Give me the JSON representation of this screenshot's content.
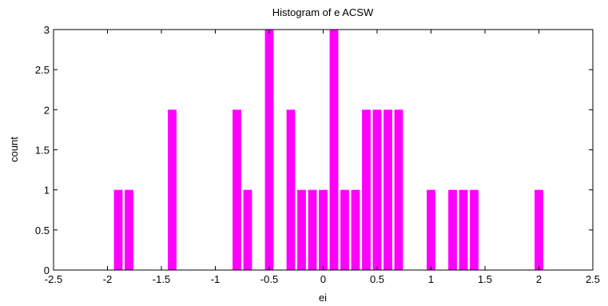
{
  "chart_data": {
    "type": "bar",
    "title": "Histogram of e ACSW",
    "xlabel": "ei",
    "ylabel": "count",
    "xlim": [
      -2.5,
      2.5
    ],
    "ylim": [
      0,
      3
    ],
    "x_ticks": [
      "-2.5",
      "-2",
      "-1.5",
      "-1",
      "-0.5",
      "0",
      "0.5",
      "1",
      "1.5",
      "2",
      "2.5"
    ],
    "y_ticks": [
      "0",
      "0.5",
      "1",
      "1.5",
      "2",
      "2.5",
      "3"
    ],
    "bar_width": 0.08,
    "bar_color": "#ff00ff",
    "grid": false,
    "bars": [
      {
        "x": -1.9,
        "count": 1
      },
      {
        "x": -1.8,
        "count": 1
      },
      {
        "x": -1.4,
        "count": 2
      },
      {
        "x": -0.8,
        "count": 2
      },
      {
        "x": -0.7,
        "count": 1
      },
      {
        "x": -0.5,
        "count": 3
      },
      {
        "x": -0.3,
        "count": 2
      },
      {
        "x": -0.2,
        "count": 1
      },
      {
        "x": -0.1,
        "count": 1
      },
      {
        "x": 0.0,
        "count": 1
      },
      {
        "x": 0.1,
        "count": 3
      },
      {
        "x": 0.2,
        "count": 1
      },
      {
        "x": 0.3,
        "count": 1
      },
      {
        "x": 0.4,
        "count": 2
      },
      {
        "x": 0.5,
        "count": 2
      },
      {
        "x": 0.6,
        "count": 2
      },
      {
        "x": 0.7,
        "count": 2
      },
      {
        "x": 1.0,
        "count": 1
      },
      {
        "x": 1.2,
        "count": 1
      },
      {
        "x": 1.3,
        "count": 1
      },
      {
        "x": 1.4,
        "count": 1
      },
      {
        "x": 2.0,
        "count": 1
      }
    ]
  }
}
